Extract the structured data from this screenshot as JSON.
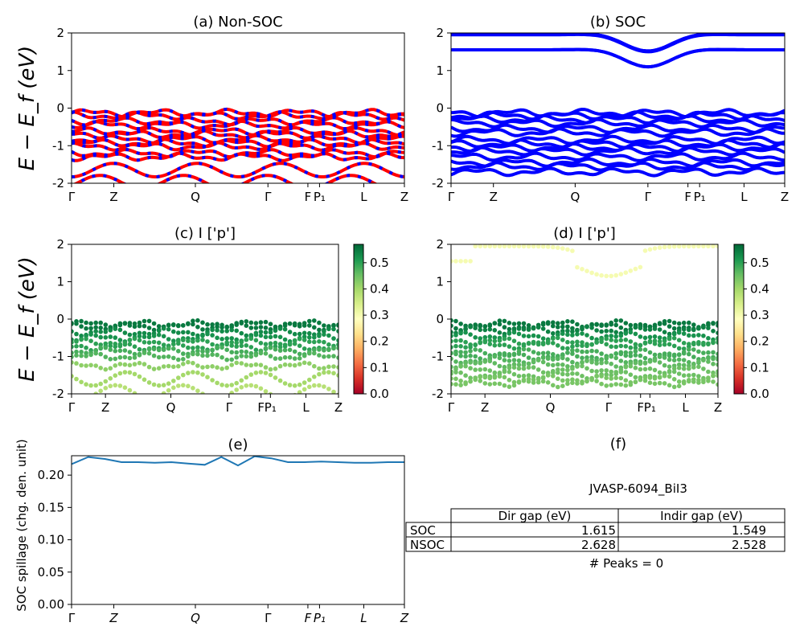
{
  "chart_data": [
    {
      "id": "a",
      "type": "line",
      "title": "(a) Non-SOC",
      "ylabel": "E − E_f (eV)",
      "ylim": [
        -2,
        2
      ],
      "yticks": [
        2,
        1,
        0,
        -1,
        -2
      ],
      "xticks": [
        "Γ",
        "Z",
        "Q",
        "Γ",
        "F",
        "P₁",
        "L",
        "Z"
      ],
      "series": [
        {
          "color": "#ff0000",
          "values": [
            -0.13,
            -0.2,
            -0.35,
            -0.45,
            -0.62,
            -0.7,
            -0.83,
            -0.93,
            -1.02,
            -1.2,
            -1.3,
            -1.65,
            -1.97
          ]
        },
        {
          "color": "#0000ff",
          "values": [
            -0.13,
            -0.2,
            -0.35,
            -0.45,
            -0.62,
            -0.7,
            -0.83,
            -0.93,
            -1.02,
            -1.2,
            -1.3,
            -1.65,
            -1.97
          ]
        }
      ]
    },
    {
      "id": "b",
      "type": "line",
      "title": "(b) SOC",
      "ylim": [
        -2,
        2
      ],
      "yticks": [
        2,
        1,
        0,
        -1,
        -2
      ],
      "xticks": [
        "Γ",
        "Z",
        "Q",
        "Γ",
        "F",
        "P₁",
        "L",
        "Z"
      ],
      "series": [
        {
          "color": "#0000ff",
          "values": [
            1.55,
            1.97,
            1.95,
            1.55,
            1.97,
            -0.13,
            -0.2,
            -0.3,
            -0.4,
            -0.55,
            -0.65,
            -0.85,
            -0.95,
            -1.05,
            -1.15,
            -1.3,
            -1.45,
            -1.55,
            -1.7
          ]
        }
      ]
    },
    {
      "id": "c",
      "type": "scatter",
      "title": "(c)  I ['p']",
      "ylabel": "E − E_f (eV)",
      "ylim": [
        -2,
        2
      ],
      "yticks": [
        2,
        1,
        0,
        -1,
        -2
      ],
      "xticks": [
        "Γ",
        "Z",
        "Q",
        "Γ",
        "F",
        "P₁",
        "L",
        "Z"
      ],
      "colorbar": {
        "ticks": [
          "0.0",
          "0.1",
          "0.2",
          "0.3",
          "0.4",
          "0.5"
        ],
        "range": [
          0,
          0.57
        ]
      },
      "bands": [
        -0.13,
        -0.2,
        -0.35,
        -0.5,
        -0.62,
        -0.75,
        -0.85,
        -1.0,
        -1.25,
        -1.6,
        -1.95
      ],
      "band_weights": [
        0.55,
        0.55,
        0.53,
        0.52,
        0.5,
        0.5,
        0.48,
        0.47,
        0.42,
        0.4,
        0.38
      ]
    },
    {
      "id": "d",
      "type": "scatter",
      "title": "(d) I ['p']",
      "ylim": [
        -2,
        2
      ],
      "yticks": [
        2,
        1,
        0,
        -1,
        -2
      ],
      "xticks": [
        "Γ",
        "Z",
        "Q",
        "Γ",
        "F",
        "P₁",
        "L",
        "Z"
      ],
      "colorbar": {
        "ticks": [
          "0.0",
          "0.1",
          "0.2",
          "0.3",
          "0.4",
          "0.5"
        ],
        "range": [
          0,
          0.57
        ]
      },
      "bands": [
        1.55,
        -0.13,
        -0.2,
        -0.3,
        -0.45,
        -0.6,
        -0.7,
        -0.9,
        -1.0,
        -1.1,
        -1.2,
        -1.35,
        -1.5,
        -1.6,
        -1.72
      ],
      "band_weights": [
        0.3,
        0.55,
        0.55,
        0.54,
        0.52,
        0.5,
        0.5,
        0.48,
        0.48,
        0.47,
        0.46,
        0.45,
        0.45,
        0.44,
        0.44
      ]
    },
    {
      "id": "e",
      "type": "line",
      "title": "(e)",
      "ylabel": "SOC spillage (chg. den. unit)",
      "ylim": [
        0,
        0.23
      ],
      "yticks": [
        "0.20",
        "0.15",
        "0.10",
        "0.05",
        "0.00"
      ],
      "xticks": [
        "Γ",
        "Z",
        "Q",
        "Γ",
        "F",
        "P₁",
        "L",
        "Z"
      ],
      "series": [
        {
          "color": "#1f77b4",
          "x": [
            0,
            0.05,
            0.1,
            0.15,
            0.2,
            0.25,
            0.3,
            0.35,
            0.4,
            0.45,
            0.5,
            0.55,
            0.6,
            0.65,
            0.7,
            0.75,
            0.8,
            0.85,
            0.9,
            0.95,
            1.0
          ],
          "values": [
            0.217,
            0.228,
            0.225,
            0.22,
            0.22,
            0.219,
            0.22,
            0.218,
            0.216,
            0.228,
            0.215,
            0.229,
            0.226,
            0.22,
            0.22,
            0.221,
            0.22,
            0.219,
            0.219,
            0.22,
            0.22
          ]
        }
      ]
    },
    {
      "id": "f",
      "type": "table",
      "title": "(f)",
      "subtitle": "JVASP-6094_BiI3",
      "columns": [
        "Dir gap (eV)",
        "Indir gap (eV)"
      ],
      "rows": [
        {
          "label": "SOC",
          "values": [
            "1.615",
            "1.549"
          ]
        },
        {
          "label": "NSOC",
          "values": [
            "2.628",
            "2.528"
          ]
        }
      ],
      "footer": "# Peaks = 0"
    }
  ]
}
